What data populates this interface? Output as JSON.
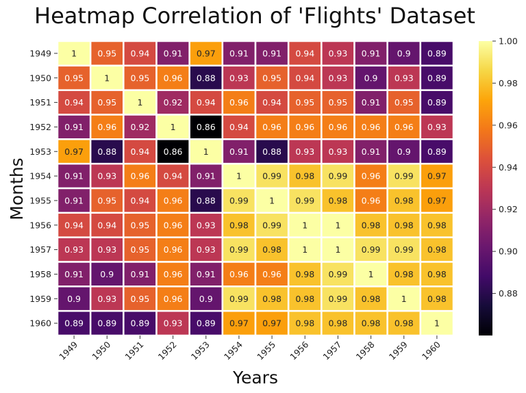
{
  "chart_data": {
    "type": "heatmap",
    "title": "Heatmap Correlation of 'Flights' Dataset",
    "xlabel": "Years",
    "ylabel": "Months",
    "x_categories": [
      "1949",
      "1950",
      "1951",
      "1952",
      "1953",
      "1954",
      "1955",
      "1956",
      "1957",
      "1958",
      "1959",
      "1960"
    ],
    "y_categories": [
      "1949",
      "1950",
      "1951",
      "1952",
      "1953",
      "1954",
      "1955",
      "1956",
      "1957",
      "1958",
      "1959",
      "1960"
    ],
    "values": [
      [
        1,
        0.95,
        0.94,
        0.91,
        0.97,
        0.91,
        0.91,
        0.94,
        0.93,
        0.91,
        0.9,
        0.89
      ],
      [
        0.95,
        1,
        0.95,
        0.96,
        0.88,
        0.93,
        0.95,
        0.94,
        0.93,
        0.9,
        0.93,
        0.89
      ],
      [
        0.94,
        0.95,
        1,
        0.92,
        0.94,
        0.96,
        0.94,
        0.95,
        0.95,
        0.91,
        0.95,
        0.89
      ],
      [
        0.91,
        0.96,
        0.92,
        1,
        0.86,
        0.94,
        0.96,
        0.96,
        0.96,
        0.96,
        0.96,
        0.93
      ],
      [
        0.97,
        0.88,
        0.94,
        0.86,
        1,
        0.91,
        0.88,
        0.93,
        0.93,
        0.91,
        0.9,
        0.89
      ],
      [
        0.91,
        0.93,
        0.96,
        0.94,
        0.91,
        1,
        0.99,
        0.98,
        0.99,
        0.96,
        0.99,
        0.97
      ],
      [
        0.91,
        0.95,
        0.94,
        0.96,
        0.88,
        0.99,
        1,
        0.99,
        0.98,
        0.96,
        0.98,
        0.97
      ],
      [
        0.94,
        0.94,
        0.95,
        0.96,
        0.93,
        0.98,
        0.99,
        1,
        1,
        0.98,
        0.98,
        0.98
      ],
      [
        0.93,
        0.93,
        0.95,
        0.96,
        0.93,
        0.99,
        0.98,
        1,
        1,
        0.99,
        0.99,
        0.98
      ],
      [
        0.91,
        0.9,
        0.91,
        0.96,
        0.91,
        0.96,
        0.96,
        0.98,
        0.99,
        1,
        0.98,
        0.98
      ],
      [
        0.9,
        0.93,
        0.95,
        0.96,
        0.9,
        0.99,
        0.98,
        0.98,
        0.99,
        0.98,
        1,
        0.98
      ],
      [
        0.89,
        0.89,
        0.89,
        0.93,
        0.89,
        0.97,
        0.97,
        0.98,
        0.98,
        0.98,
        0.98,
        1
      ]
    ],
    "annotated": true,
    "colormap": "inferno",
    "colorbar": {
      "range": [
        0.86,
        1.0
      ],
      "ticks": [
        0.88,
        0.9,
        0.92,
        0.94,
        0.96,
        0.98,
        1.0
      ],
      "tick_labels": [
        "0.88",
        "0.90",
        "0.92",
        "0.94",
        "0.96",
        "0.98",
        "1.00"
      ],
      "placement": "right"
    },
    "cell_border_color": "#ffffff",
    "grid": false
  }
}
